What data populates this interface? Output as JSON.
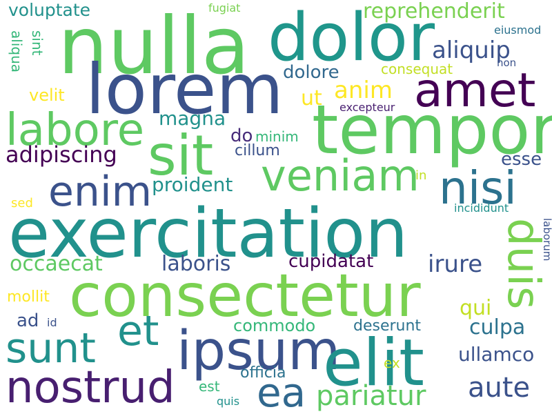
{
  "words": [
    {
      "text": "nulla",
      "color": "#5ec962"
    },
    {
      "text": "dolor",
      "color": "#1f968b"
    },
    {
      "text": "lorem",
      "color": "#3b528b"
    },
    {
      "text": "amet",
      "color": "#440154"
    },
    {
      "text": "tempor",
      "color": "#5ec962"
    },
    {
      "text": "labore",
      "color": "#5ec962"
    },
    {
      "text": "sit",
      "color": "#5ec962"
    },
    {
      "text": "veniam",
      "color": "#5ec962"
    },
    {
      "text": "enim",
      "color": "#3b528b"
    },
    {
      "text": "nisi",
      "color": "#2c728e"
    },
    {
      "text": "exercitation",
      "color": "#21918c"
    },
    {
      "text": "duis",
      "color": "#7ad151"
    },
    {
      "text": "consectetur",
      "color": "#7ad151"
    },
    {
      "text": "et",
      "color": "#21918c"
    },
    {
      "text": "ipsum",
      "color": "#3b528b"
    },
    {
      "text": "elit",
      "color": "#21918c"
    },
    {
      "text": "sunt",
      "color": "#21918c"
    },
    {
      "text": "nostrud",
      "color": "#481f70"
    },
    {
      "text": "ea",
      "color": "#31688e"
    },
    {
      "text": "pariatur",
      "color": "#5ec962"
    },
    {
      "text": "aute",
      "color": "#3b528b"
    },
    {
      "text": "reprehenderit",
      "color": "#7ad151"
    },
    {
      "text": "aliquip",
      "color": "#3b528b"
    },
    {
      "text": "voluptate",
      "color": "#21918c"
    },
    {
      "text": "fugiat",
      "color": "#7ad151"
    },
    {
      "text": "eiusmod",
      "color": "#2c728e"
    },
    {
      "text": "non",
      "color": "#3b528b"
    },
    {
      "text": "dolore",
      "color": "#31688e"
    },
    {
      "text": "consequat",
      "color": "#c2df23"
    },
    {
      "text": "anim",
      "color": "#fde725"
    },
    {
      "text": "ut",
      "color": "#fde725"
    },
    {
      "text": "excepteur",
      "color": "#481f70"
    },
    {
      "text": "velit",
      "color": "#fde725"
    },
    {
      "text": "magna",
      "color": "#21918c"
    },
    {
      "text": "do",
      "color": "#472c7a"
    },
    {
      "text": "minim",
      "color": "#35b779"
    },
    {
      "text": "cillum",
      "color": "#3b528b"
    },
    {
      "text": "adipiscing",
      "color": "#440154"
    },
    {
      "text": "esse",
      "color": "#3b528b"
    },
    {
      "text": "proident",
      "color": "#21918c"
    },
    {
      "text": "in",
      "color": "#c2df23"
    },
    {
      "text": "sed",
      "color": "#fde725"
    },
    {
      "text": "incididunt",
      "color": "#21918c"
    },
    {
      "text": "laborum",
      "color": "#3b528b"
    },
    {
      "text": "occaecat",
      "color": "#5ec962"
    },
    {
      "text": "laboris",
      "color": "#3b528b"
    },
    {
      "text": "cupidatat",
      "color": "#440154"
    },
    {
      "text": "irure",
      "color": "#3b528b"
    },
    {
      "text": "mollit",
      "color": "#fde725"
    },
    {
      "text": "qui",
      "color": "#c2df23"
    },
    {
      "text": "ad",
      "color": "#3b528b"
    },
    {
      "text": "id",
      "color": "#3b528b"
    },
    {
      "text": "commodo",
      "color": "#35b779"
    },
    {
      "text": "culpa",
      "color": "#2c728e"
    },
    {
      "text": "deserunt",
      "color": "#2c728e"
    },
    {
      "text": "ullamco",
      "color": "#3b528b"
    },
    {
      "text": "ex",
      "color": "#c2df23"
    },
    {
      "text": "officia",
      "color": "#2c728e"
    },
    {
      "text": "est",
      "color": "#35b779"
    },
    {
      "text": "quis",
      "color": "#21918c"
    },
    {
      "text": "aliqua",
      "color": "#35b779"
    },
    {
      "text": "sint",
      "color": "#35b779"
    }
  ]
}
